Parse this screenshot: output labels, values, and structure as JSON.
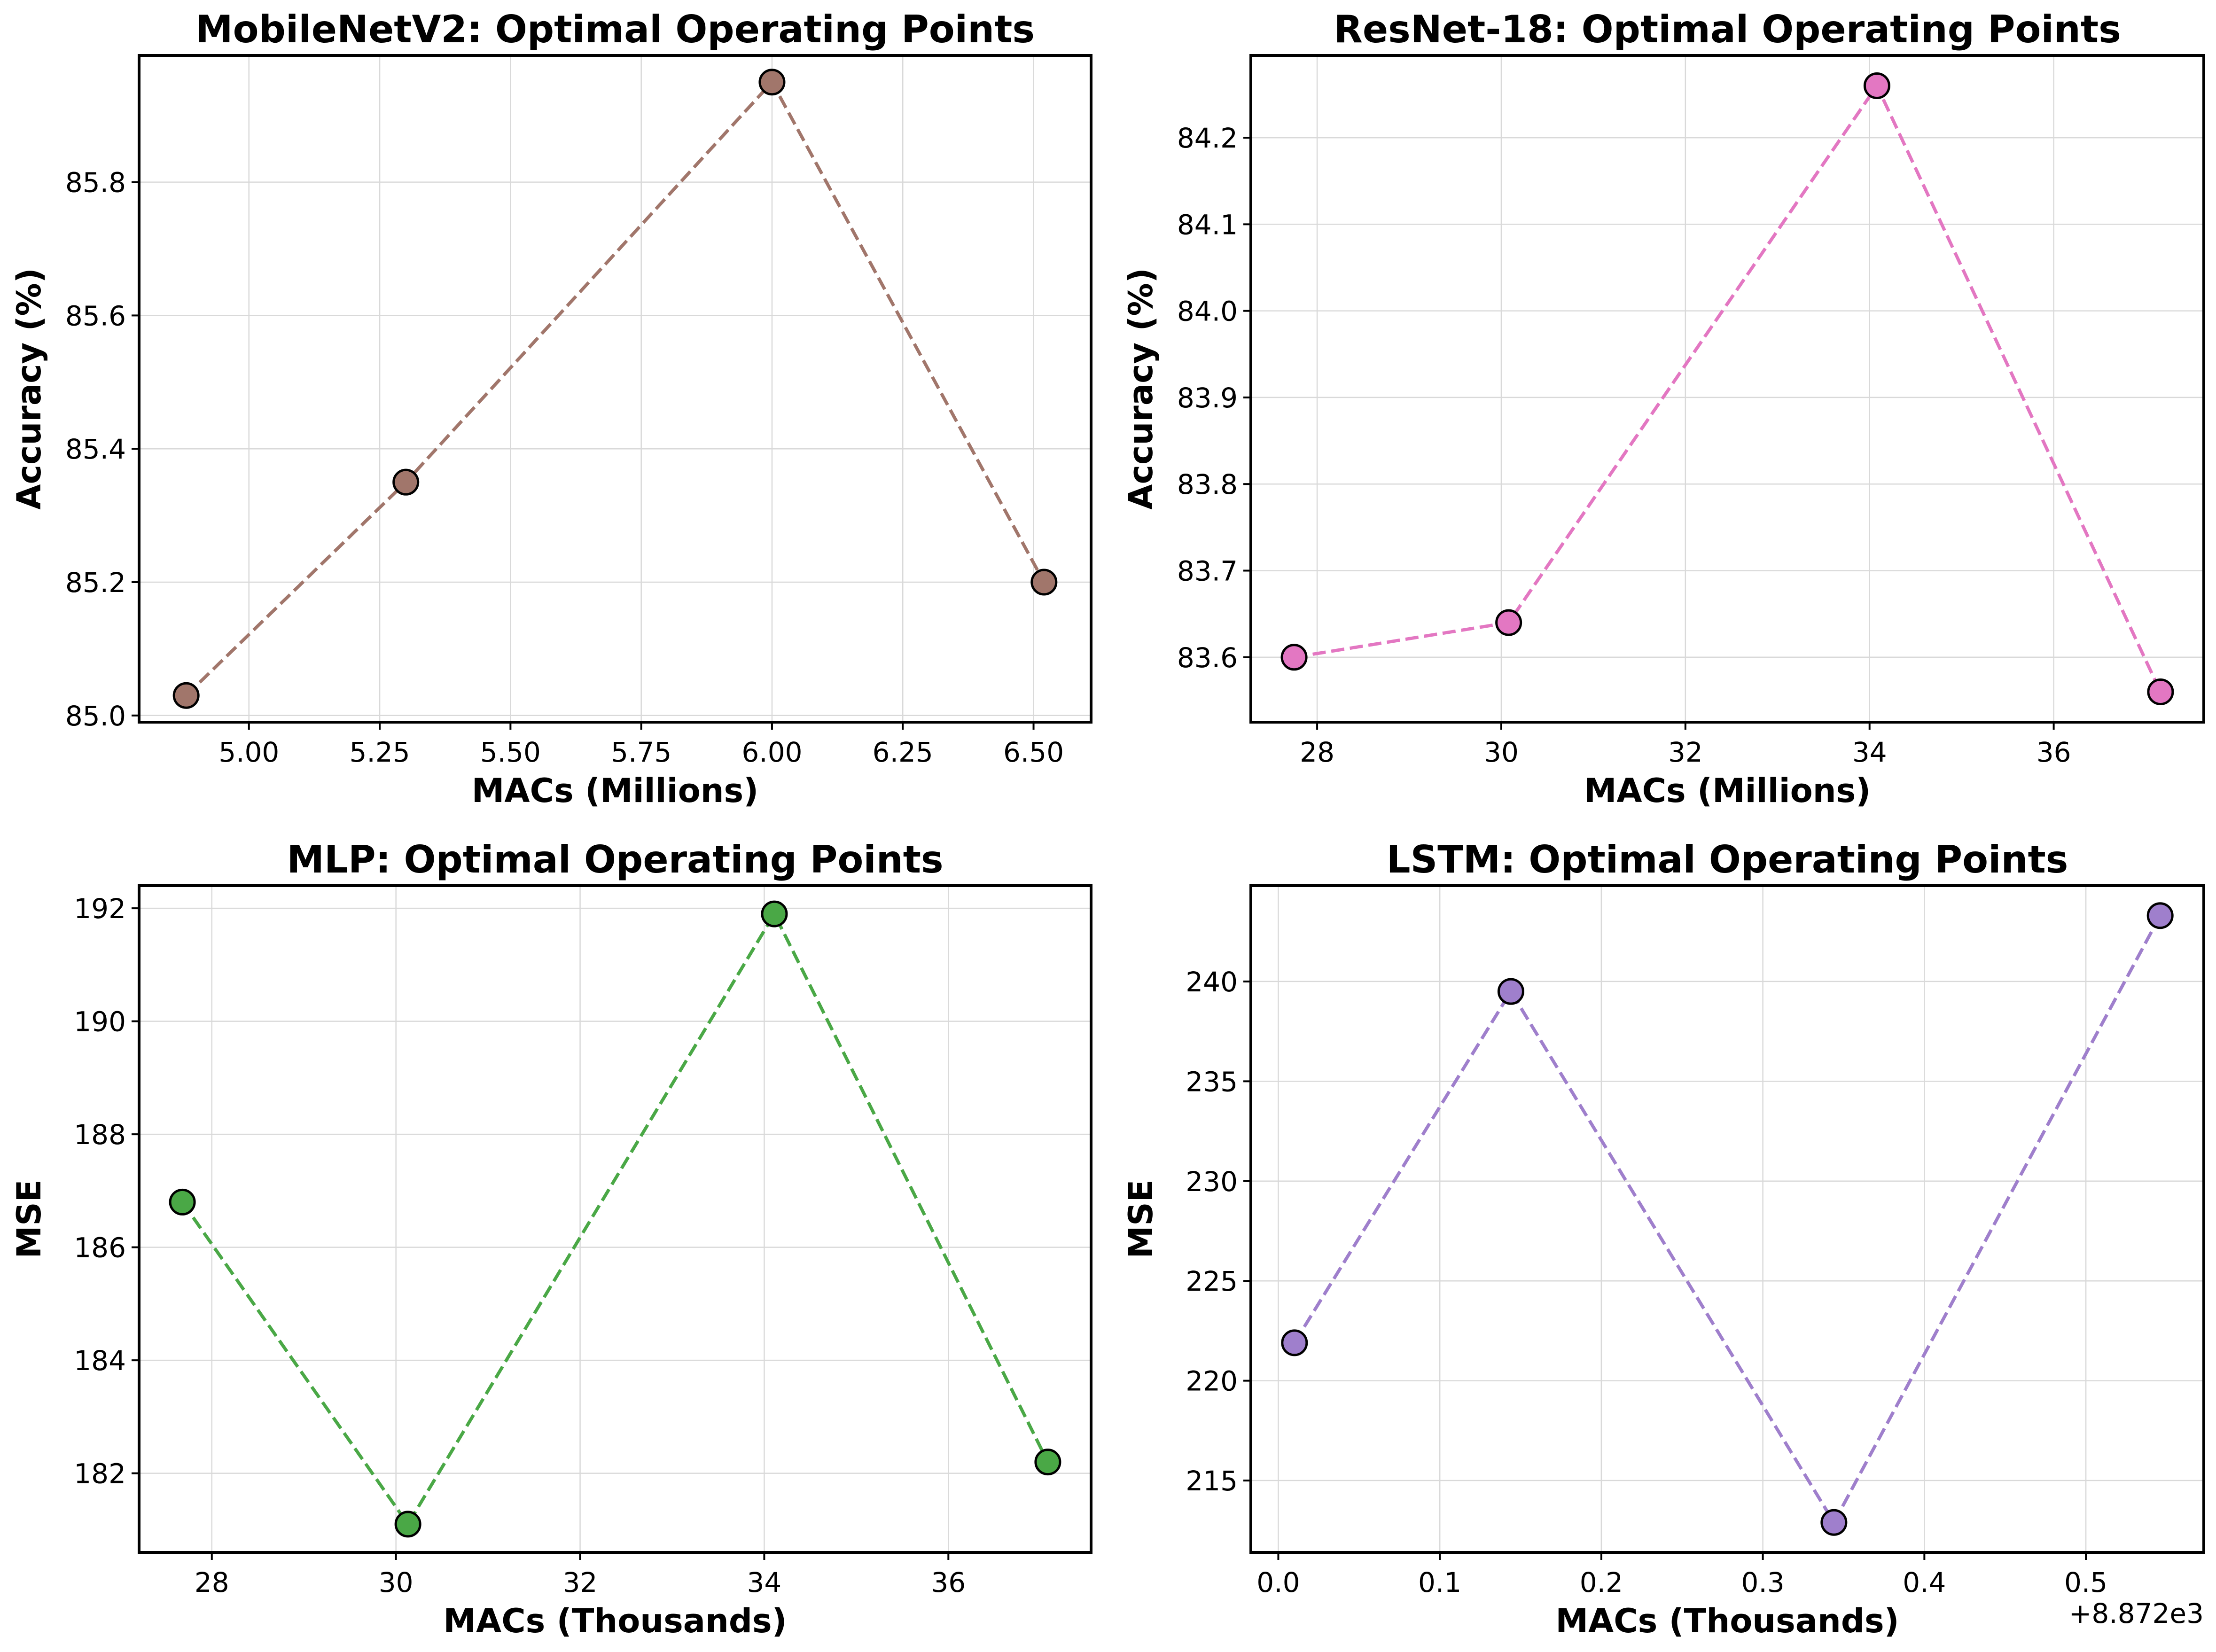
{
  "chart_data": [
    {
      "type": "line",
      "title": "MobileNetV2: Optimal Operating Points",
      "xlabel": "MACs (Millions)",
      "ylabel": "Accuracy (%)",
      "color": "#a1766b",
      "x": [
        4.88,
        5.3,
        6.0,
        6.52
      ],
      "y": [
        85.03,
        85.35,
        85.95,
        85.2
      ],
      "xlim": [
        4.79,
        6.61
      ],
      "ylim": [
        84.99,
        85.99
      ],
      "xticks": [
        5.0,
        5.25,
        5.5,
        5.75,
        6.0,
        6.25,
        6.5
      ],
      "xtick_labels": [
        "5.00",
        "5.25",
        "5.50",
        "5.75",
        "6.00",
        "6.25",
        "6.50"
      ],
      "yticks": [
        85.0,
        85.2,
        85.4,
        85.6,
        85.8
      ],
      "ytick_labels": [
        "85.0",
        "85.2",
        "85.4",
        "85.6",
        "85.8"
      ],
      "grid": true
    },
    {
      "type": "line",
      "title": "ResNet-18: Optimal Operating Points",
      "xlabel": "MACs (Millions)",
      "ylabel": "Accuracy (%)",
      "color": "#e377c2",
      "x": [
        27.75,
        30.08,
        34.08,
        37.16
      ],
      "y": [
        83.6,
        83.64,
        84.26,
        83.56
      ],
      "xlim": [
        27.28,
        37.63
      ],
      "ylim": [
        83.525,
        84.295
      ],
      "xticks": [
        28,
        30,
        32,
        34,
        36
      ],
      "xtick_labels": [
        "28",
        "30",
        "32",
        "34",
        "36"
      ],
      "yticks": [
        83.6,
        83.7,
        83.8,
        83.9,
        84.0,
        84.1,
        84.2
      ],
      "ytick_labels": [
        "83.6",
        "83.7",
        "83.8",
        "83.9",
        "84.0",
        "84.1",
        "84.2"
      ],
      "grid": true
    },
    {
      "type": "line",
      "title": "MLP: Optimal Operating Points",
      "xlabel": "MACs (Thousands)",
      "ylabel": "MSE",
      "color": "#4aa846",
      "x": [
        27.68,
        30.13,
        34.11,
        37.08
      ],
      "y": [
        186.8,
        181.1,
        191.9,
        182.2
      ],
      "xlim": [
        27.21,
        37.55
      ],
      "ylim": [
        180.6,
        192.4
      ],
      "xticks": [
        28,
        30,
        32,
        34,
        36
      ],
      "xtick_labels": [
        "28",
        "30",
        "32",
        "34",
        "36"
      ],
      "yticks": [
        182,
        184,
        186,
        188,
        190,
        192
      ],
      "ytick_labels": [
        "182",
        "184",
        "186",
        "188",
        "190",
        "192"
      ],
      "grid": true
    },
    {
      "type": "line",
      "title": "LSTM: Optimal Operating Points",
      "xlabel": "MACs (Thousands)",
      "ylabel": "MSE",
      "color": "#9f7fcc",
      "x": [
        0.01,
        0.144,
        0.344,
        0.546
      ],
      "y": [
        221.9,
        239.5,
        212.9,
        243.3
      ],
      "xlim": [
        -0.017,
        0.573
      ],
      "ylim": [
        211.4,
        244.8
      ],
      "xticks": [
        0.0,
        0.1,
        0.2,
        0.3,
        0.4,
        0.5
      ],
      "xtick_labels": [
        "0.0",
        "0.1",
        "0.2",
        "0.3",
        "0.4",
        "0.5"
      ],
      "yticks": [
        215,
        220,
        225,
        230,
        235,
        240
      ],
      "ytick_labels": [
        "215",
        "220",
        "225",
        "230",
        "235",
        "240"
      ],
      "x_offset_label": "+8.872e3",
      "grid": true
    }
  ]
}
